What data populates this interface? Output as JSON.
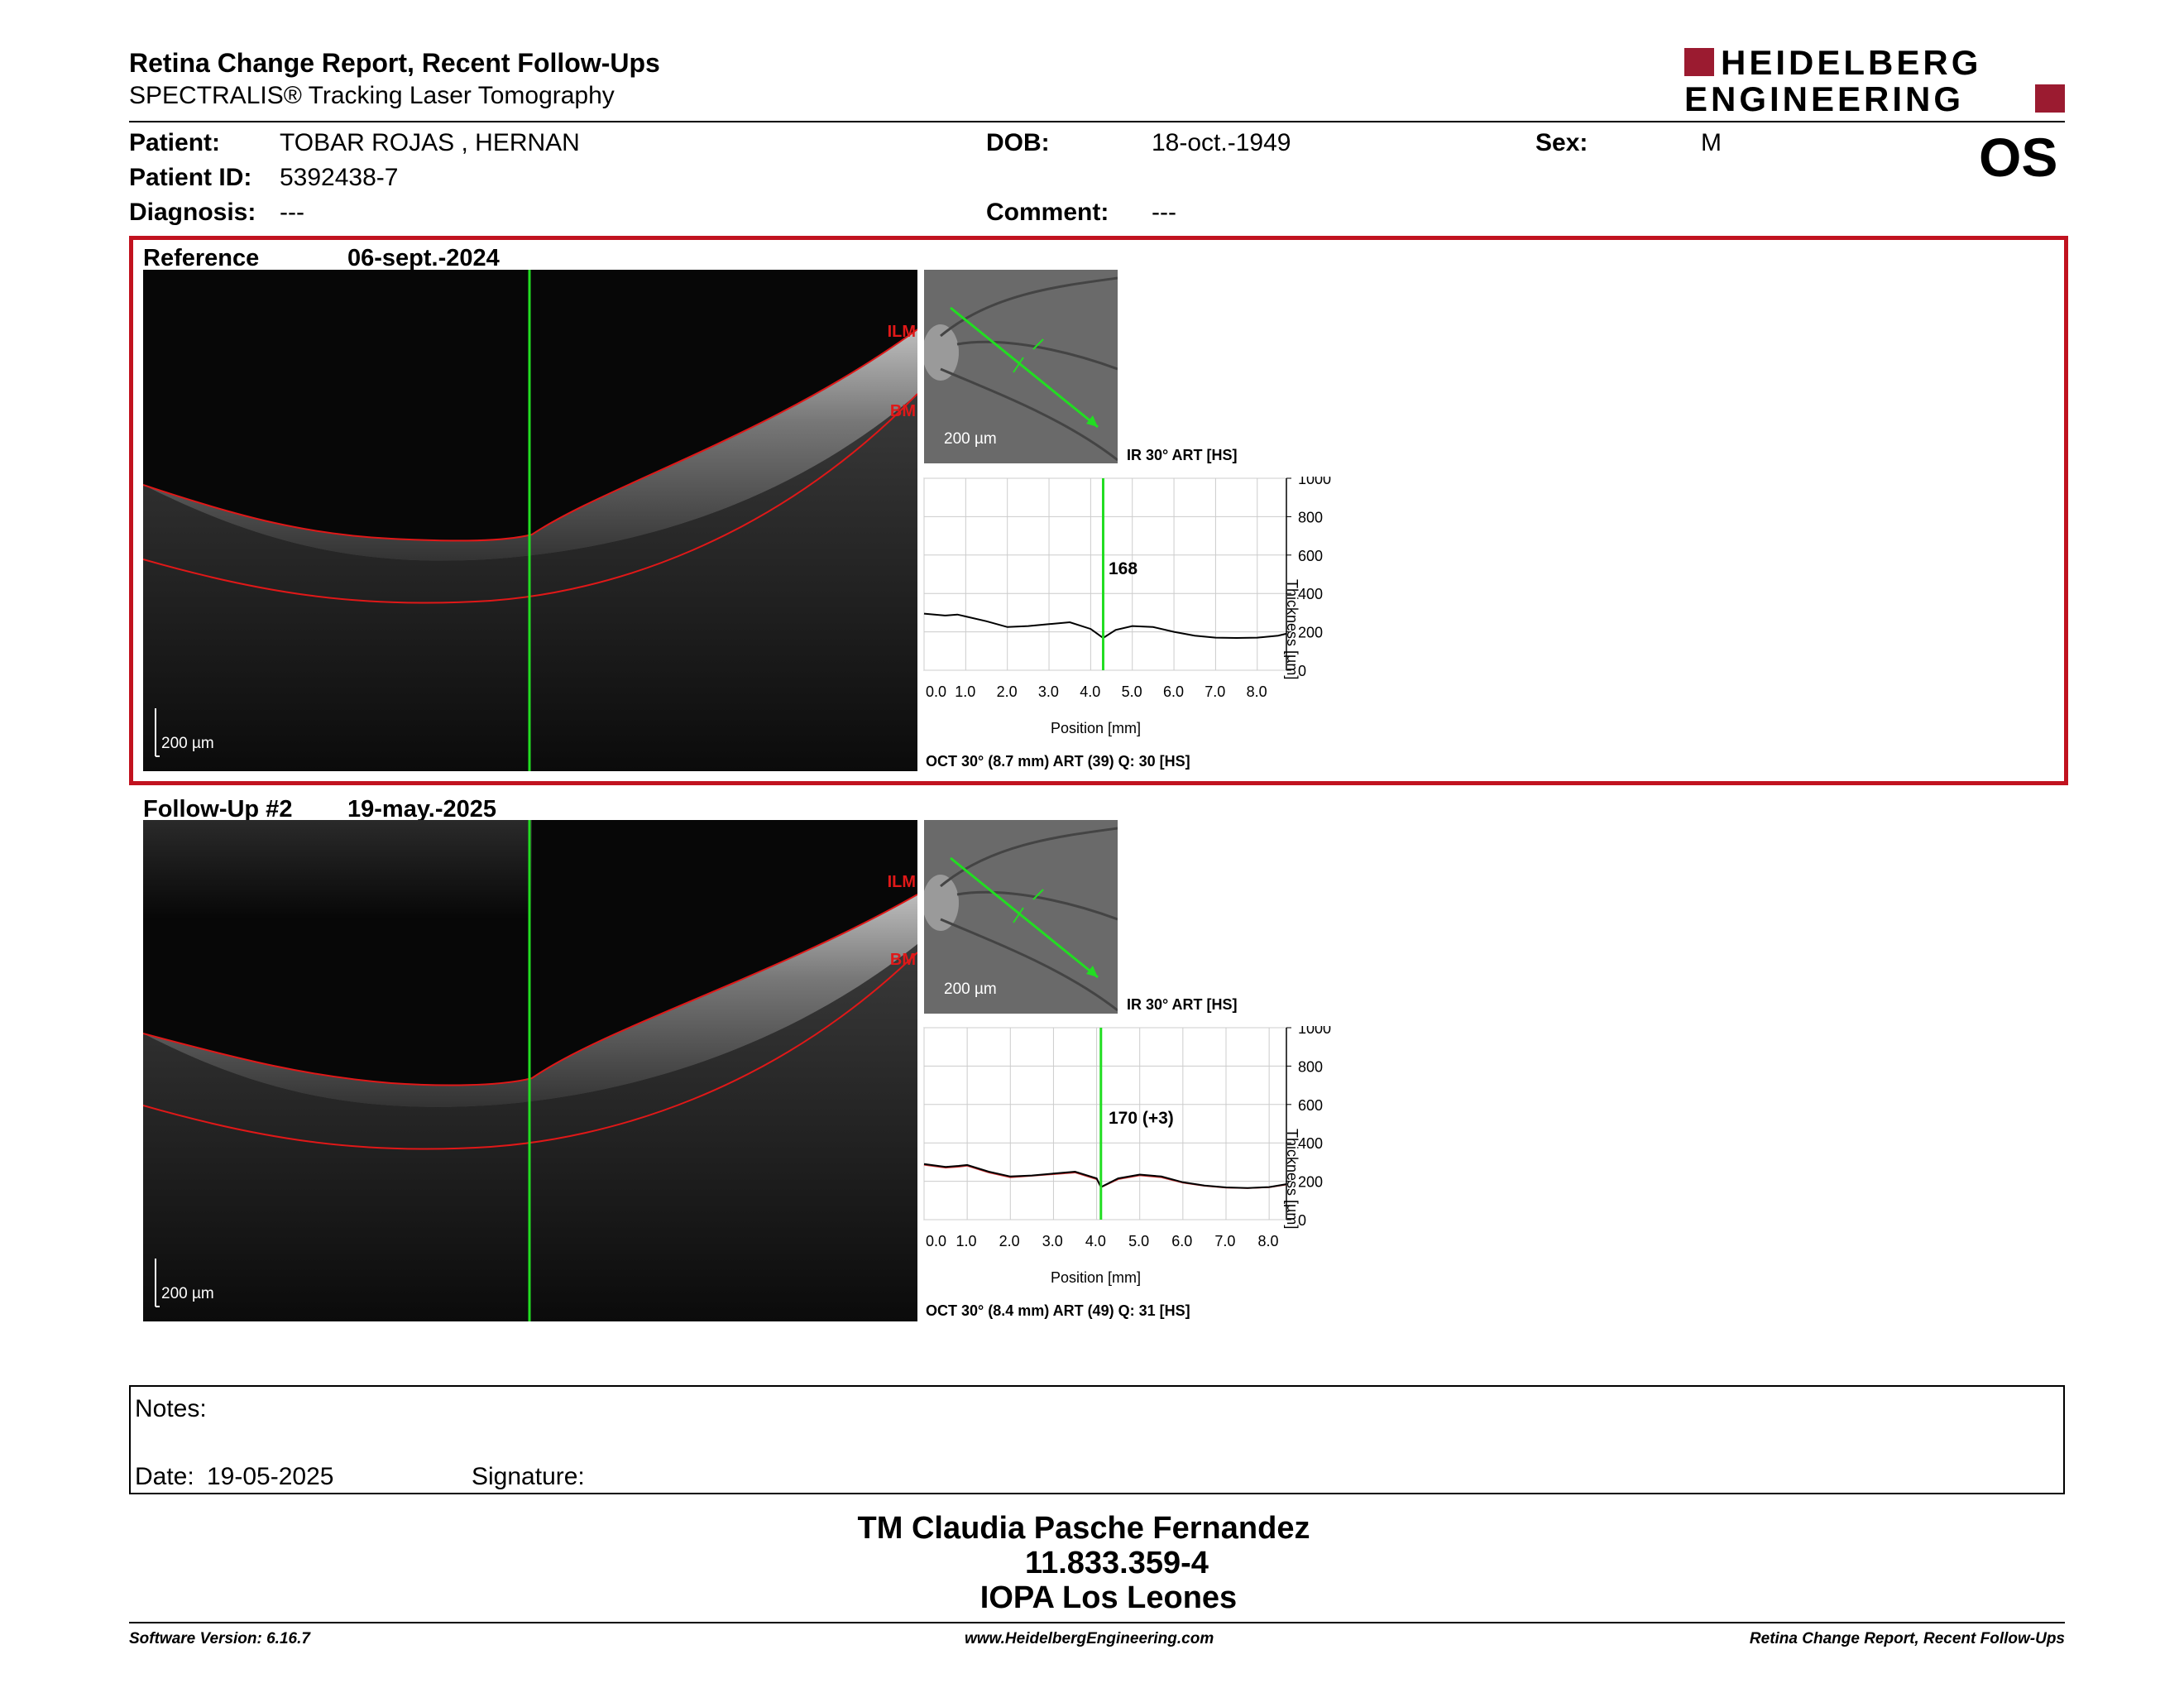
{
  "header": {
    "title": "Retina Change Report, Recent Follow-Ups",
    "subtitle": "SPECTRALIS® Tracking Laser Tomography",
    "logo_line1": "HEIDELBERG",
    "logo_line2": "ENGINEERING",
    "eye": "OS"
  },
  "patient": {
    "name_label": "Patient:",
    "name": "TOBAR ROJAS , HERNAN",
    "id_label": "Patient ID:",
    "id": "5392438-7",
    "diagnosis_label": "Diagnosis:",
    "diagnosis": "---",
    "dob_label": "DOB:",
    "dob": "18-oct.-1949",
    "comment_label": "Comment:",
    "comment": "---",
    "sex_label": "Sex:",
    "sex": "M"
  },
  "exams": [
    {
      "label": "Reference",
      "date": "06-sept.-2024",
      "oct_scale": "200 µm",
      "slo_scale": "200 µm",
      "ilm": "ILM",
      "bm": "BM",
      "slo_caption": "IR 30° ART [HS]",
      "value_label": "168",
      "oct_caption": "OCT 30° (8.7 mm) ART (39) Q: 30 [HS]"
    },
    {
      "label": "Follow-Up #2",
      "date": "19-may.-2025",
      "oct_scale": "200 µm",
      "slo_scale": "200 µm",
      "ilm": "ILM",
      "bm": "BM",
      "slo_caption": "IR 30° ART [HS]",
      "value_label": "170 (+3)",
      "oct_caption": "OCT 30° (8.4 mm) ART (49) Q: 31 [HS]"
    }
  ],
  "chart_data": [
    {
      "type": "line",
      "xlabel": "Position [mm]",
      "ylabel": "Thickness [µm]",
      "xlim": [
        0,
        8.7
      ],
      "ylim": [
        0,
        1000
      ],
      "x_ticks": [
        "0.0",
        "1.0",
        "2.0",
        "3.0",
        "4.0",
        "5.0",
        "6.0",
        "7.0",
        "8.0"
      ],
      "y_ticks": [
        "0",
        "200",
        "400",
        "600",
        "800",
        "1000"
      ],
      "marker_x": 4.3,
      "series": [
        {
          "x": [
            0,
            0.5,
            0.8,
            1.0,
            1.5,
            2.0,
            2.5,
            3.0,
            3.5,
            4.0,
            4.3,
            4.6,
            5.0,
            5.5,
            6.0,
            6.5,
            7.0,
            7.5,
            8.0,
            8.5,
            8.7
          ],
          "y": [
            295,
            285,
            290,
            280,
            255,
            225,
            230,
            240,
            250,
            215,
            168,
            210,
            230,
            225,
            200,
            180,
            170,
            168,
            170,
            180,
            190
          ]
        }
      ]
    },
    {
      "type": "line",
      "xlabel": "Position [mm]",
      "ylabel": "Thickness [µm]",
      "xlim": [
        0,
        8.4
      ],
      "ylim": [
        0,
        1000
      ],
      "x_ticks": [
        "0.0",
        "1.0",
        "2.0",
        "3.0",
        "4.0",
        "5.0",
        "6.0",
        "7.0",
        "8.0"
      ],
      "y_ticks": [
        "0",
        "200",
        "400",
        "600",
        "800",
        "1000"
      ],
      "marker_x": 4.1,
      "series": [
        {
          "x": [
            0,
            0.5,
            0.8,
            1.0,
            1.5,
            2.0,
            2.5,
            3.0,
            3.5,
            4.0,
            4.1,
            4.5,
            5.0,
            5.5,
            6.0,
            6.5,
            7.0,
            7.5,
            8.0,
            8.4
          ],
          "y": [
            290,
            275,
            280,
            285,
            250,
            225,
            230,
            240,
            250,
            215,
            170,
            215,
            235,
            225,
            195,
            178,
            168,
            165,
            170,
            185
          ]
        },
        {
          "x": [
            0,
            0.5,
            0.8,
            1.0,
            1.5,
            2.0,
            2.5,
            3.0,
            3.5,
            4.0,
            4.1,
            4.5,
            5.0,
            5.5,
            6.0,
            6.5,
            7.0,
            7.5,
            8.0,
            8.4
          ],
          "y": [
            285,
            270,
            275,
            280,
            245,
            220,
            228,
            236,
            245,
            210,
            168,
            210,
            230,
            220,
            192,
            176,
            166,
            164,
            168,
            182
          ]
        }
      ]
    }
  ],
  "notes": {
    "label": "Notes:",
    "date_label": "Date:",
    "date": "19-05-2025",
    "signature_label": "Signature:"
  },
  "signature": {
    "line1": "TM Claudia Pasche Fernandez",
    "line2": "11.833.359-4",
    "line3": "IOPA Los Leones"
  },
  "footer": {
    "software": "Software Version: 6.16.7",
    "url": "www.HeidelbergEngineering.com",
    "report": "Retina Change Report, Recent Follow-Ups"
  },
  "colors": {
    "brand": "#9b1b30",
    "frame": "#c1121f",
    "marker": "#22dd22",
    "layer": "#e01818"
  }
}
